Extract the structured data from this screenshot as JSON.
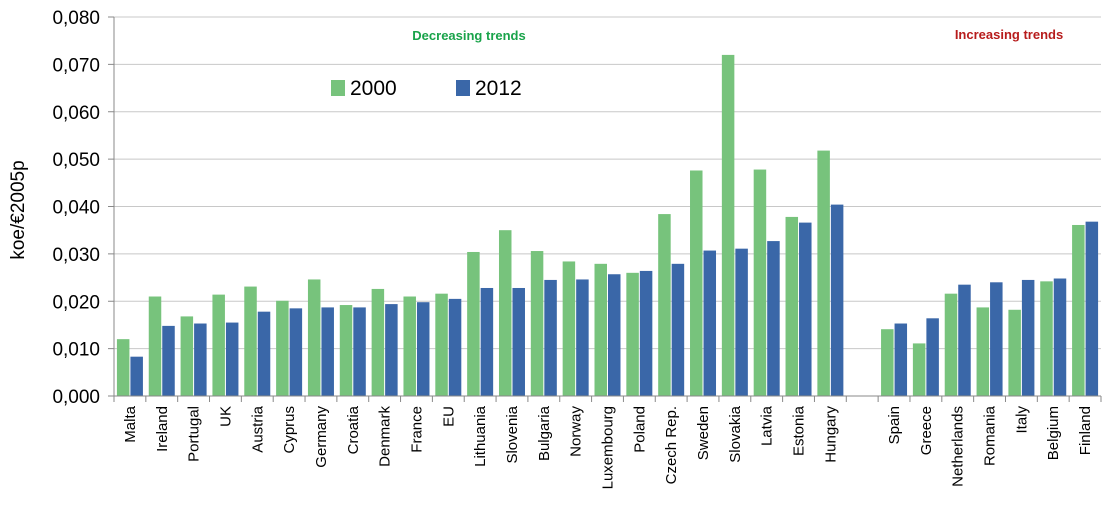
{
  "chart_data": {
    "type": "bar",
    "ylabel": "koe/€2005p",
    "ylim": [
      0,
      0.08
    ],
    "ytick_values": [
      0,
      0.01,
      0.02,
      0.03,
      0.04,
      0.05,
      0.06,
      0.07,
      0.08
    ],
    "ytick_labels": [
      "0,000",
      "0,010",
      "0,020",
      "0,030",
      "0,040",
      "0,050",
      "0,060",
      "0,070",
      "0,080"
    ],
    "grid": true,
    "legend_position": "top-left",
    "categories": [
      "Malta",
      "Ireland",
      "Portugal",
      "UK",
      "Austria",
      "Cyprus",
      "Germany",
      "Croatia",
      "Denmark",
      "France",
      "EU",
      "Lithuania",
      "Slovenia",
      "Bulgaria",
      "Norway",
      "Luxembourg",
      "Poland",
      "Czech Rep.",
      "Sweden",
      "Slovakia",
      "Latvia",
      "Estonia",
      "Hungary",
      "",
      "Spain",
      "Greece",
      "Netherlands",
      "Romania",
      "Italy",
      "Belgium",
      "Finland"
    ],
    "series": [
      {
        "name": "2000",
        "color": "#77c37c",
        "values": [
          0.012,
          0.021,
          0.0168,
          0.0214,
          0.0231,
          0.0201,
          0.0246,
          0.0192,
          0.0226,
          0.021,
          0.0216,
          0.0304,
          0.035,
          0.0306,
          0.0284,
          0.0279,
          0.026,
          0.0384,
          0.0476,
          0.072,
          0.0478,
          0.0378,
          0.0518,
          null,
          0.0141,
          0.0111,
          0.0216,
          0.0187,
          0.0182,
          0.0242,
          0.0361
        ]
      },
      {
        "name": "2012",
        "color": "#3a67a8",
        "values": [
          0.0083,
          0.0148,
          0.0153,
          0.0155,
          0.0178,
          0.0185,
          0.0187,
          0.0187,
          0.0194,
          0.0198,
          0.0205,
          0.0228,
          0.0228,
          0.0245,
          0.0246,
          0.0257,
          0.0264,
          0.0279,
          0.0307,
          0.0311,
          0.0327,
          0.0366,
          0.0404,
          null,
          0.0153,
          0.0164,
          0.0235,
          0.024,
          0.0245,
          0.0248,
          0.0368
        ]
      }
    ],
    "annotations": [
      {
        "text": "Decreasing trends",
        "color": "#19a34a"
      },
      {
        "text": "Increasing trends",
        "color": "#b71c1c"
      }
    ]
  }
}
